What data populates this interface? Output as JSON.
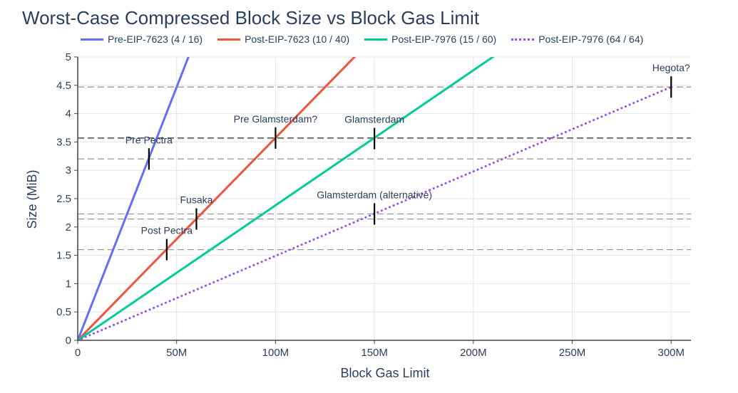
{
  "chart_data": {
    "type": "line",
    "title": "Worst-Case Compressed Block Size vs Block Gas Limit",
    "xlabel": "Block Gas Limit",
    "ylabel": "Size (MiB)",
    "xlim": [
      0,
      310000000
    ],
    "ylim": [
      0,
      5
    ],
    "x_ticks": [
      {
        "value": 0,
        "label": "0"
      },
      {
        "value": 50000000,
        "label": "50M"
      },
      {
        "value": 100000000,
        "label": "100M"
      },
      {
        "value": 150000000,
        "label": "150M"
      },
      {
        "value": 200000000,
        "label": "200M"
      },
      {
        "value": 250000000,
        "label": "250M"
      },
      {
        "value": 300000000,
        "label": "300M"
      }
    ],
    "y_ticks": [
      {
        "value": 0,
        "label": "0"
      },
      {
        "value": 0.5,
        "label": "0.5"
      },
      {
        "value": 1,
        "label": "1"
      },
      {
        "value": 1.5,
        "label": "1.5"
      },
      {
        "value": 2,
        "label": "2"
      },
      {
        "value": 2.5,
        "label": "2.5"
      },
      {
        "value": 3,
        "label": "3"
      },
      {
        "value": 3.5,
        "label": "3.5"
      },
      {
        "value": 4,
        "label": "4"
      },
      {
        "value": 4.5,
        "label": "4.5"
      },
      {
        "value": 5,
        "label": "5"
      }
    ],
    "grid": true,
    "legend_position": "top",
    "series": [
      {
        "name": "Pre-EIP-7623 (4 / 16)",
        "color": "#636efa",
        "dash": "solid",
        "x": [
          0,
          60000000
        ],
        "y": [
          0,
          5.36
        ]
      },
      {
        "name": "Post-EIP-7623 (10 / 40)",
        "color": "#ef553b",
        "dash": "solid",
        "x": [
          0,
          150000000
        ],
        "y": [
          0,
          5.36
        ]
      },
      {
        "name": "Post-EIP-7976 (15 / 60)",
        "color": "#00cc96",
        "dash": "solid",
        "x": [
          0,
          225000000
        ],
        "y": [
          0,
          5.36
        ]
      },
      {
        "name": "Post-EIP-7976 (64 / 64)",
        "color": "#9b4de8",
        "dash": "dot",
        "x": [
          0,
          300000000
        ],
        "y": [
          0,
          4.47
        ]
      }
    ],
    "reference_lines": [
      {
        "y": 4.47,
        "color": "#999999"
      },
      {
        "y": 3.57,
        "color": "#444444"
      },
      {
        "y": 3.56,
        "color": "#999999"
      },
      {
        "y": 3.2,
        "color": "#999999"
      },
      {
        "y": 2.23,
        "color": "#999999"
      },
      {
        "y": 2.14,
        "color": "#999999"
      },
      {
        "y": 1.6,
        "color": "#999999"
      }
    ],
    "markers": [
      {
        "label": "Pre Pectra",
        "x": 36000000,
        "y": 3.2
      },
      {
        "label": "Post Pectra",
        "x": 45000000,
        "y": 1.6
      },
      {
        "label": "Fusaka",
        "x": 60000000,
        "y": 2.14
      },
      {
        "label": "Pre Glamsterdam?",
        "x": 100000000,
        "y": 3.57
      },
      {
        "label": "Glamsterdam",
        "x": 150000000,
        "y": 3.56
      },
      {
        "label": "Glamsterdam (alternative)",
        "x": 150000000,
        "y": 2.23
      },
      {
        "label": "Hegota?",
        "x": 300000000,
        "y": 4.47
      }
    ]
  }
}
